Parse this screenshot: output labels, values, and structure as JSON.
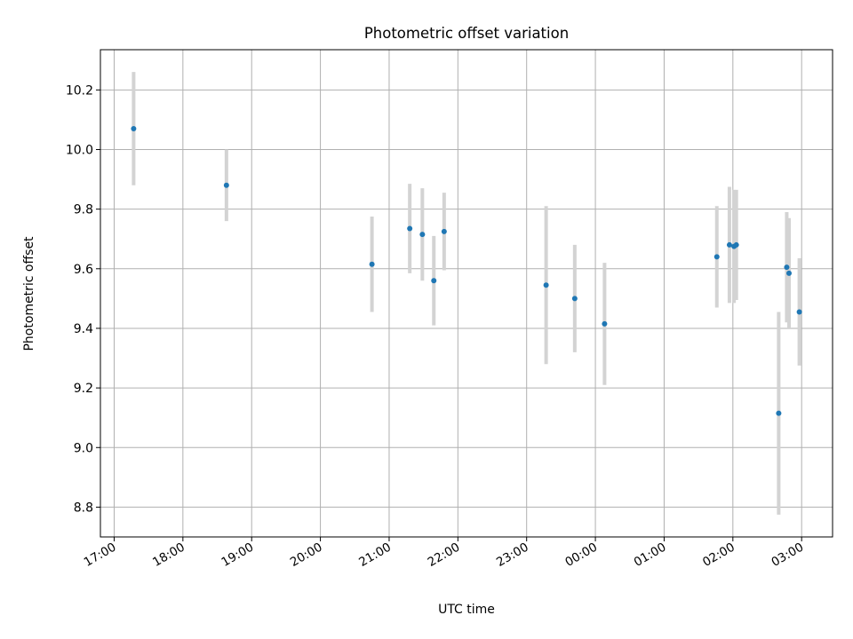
{
  "chart_data": {
    "type": "scatter",
    "title": "Photometric offset variation",
    "xlabel": "UTC time",
    "ylabel": "Photometric offset",
    "x_ticks": [
      "17:00",
      "18:00",
      "19:00",
      "20:00",
      "21:00",
      "22:00",
      "23:00",
      "00:00",
      "01:00",
      "02:00",
      "03:00"
    ],
    "y_ticks": [
      "8.8",
      "9.0",
      "9.2",
      "9.4",
      "9.6",
      "9.8",
      "10.0",
      "10.2"
    ],
    "xlim": [
      "16:48",
      "03:27"
    ],
    "ylim": [
      8.7,
      10.335
    ],
    "grid": true,
    "series": [
      {
        "points": [
          {
            "x": "17:17",
            "y": 10.07,
            "err": 0.19
          },
          {
            "x": "18:38",
            "y": 9.88,
            "err": 0.12
          },
          {
            "x": "20:45",
            "y": 9.615,
            "err": 0.16
          },
          {
            "x": "21:18",
            "y": 9.735,
            "err": 0.15
          },
          {
            "x": "21:29",
            "y": 9.715,
            "err": 0.155
          },
          {
            "x": "21:39",
            "y": 9.56,
            "err": 0.15
          },
          {
            "x": "21:48",
            "y": 9.725,
            "err": 0.13
          },
          {
            "x": "23:17",
            "y": 9.545,
            "err": 0.265
          },
          {
            "x": "23:42",
            "y": 9.5,
            "err": 0.18
          },
          {
            "x": "00:08",
            "y": 9.415,
            "err": 0.205
          },
          {
            "x": "01:46",
            "y": 9.64,
            "err": 0.17
          },
          {
            "x": "01:57",
            "y": 9.68,
            "err": 0.195
          },
          {
            "x": "02:01",
            "y": 9.675,
            "err": 0.19
          },
          {
            "x": "02:03",
            "y": 9.68,
            "err": 0.185
          },
          {
            "x": "02:40",
            "y": 9.115,
            "err": 0.34
          },
          {
            "x": "02:47",
            "y": 9.605,
            "err": 0.185
          },
          {
            "x": "02:49",
            "y": 9.585,
            "err": 0.185
          },
          {
            "x": "02:58",
            "y": 9.455,
            "err": 0.18
          }
        ]
      }
    ],
    "colors": {
      "marker": "#1f77b4",
      "errorbar": "#d3d3d3",
      "grid": "#b0b0b0",
      "axes": "#000000"
    }
  }
}
